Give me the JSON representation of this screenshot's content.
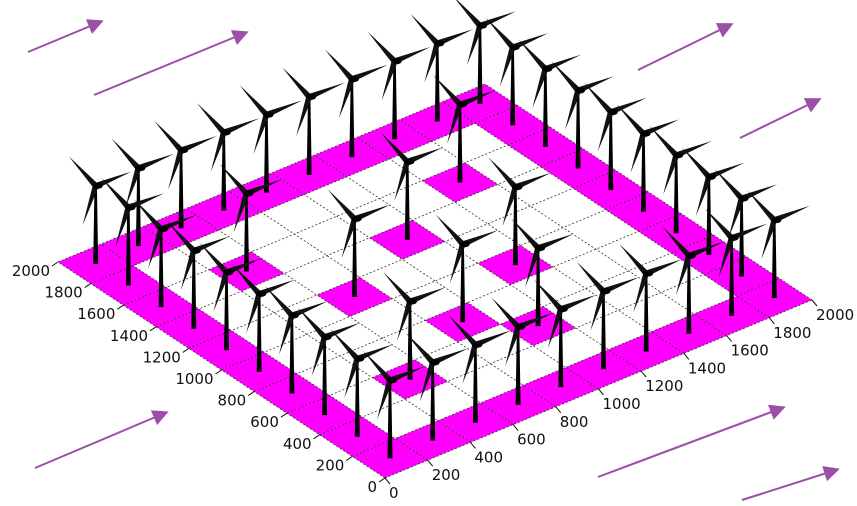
{
  "chart_data": {
    "type": "scatter",
    "x": [
      100,
      300,
      500,
      700,
      900,
      1100,
      1300,
      1500,
      1700,
      1900,
      100,
      300,
      500,
      700,
      900,
      1100,
      1300,
      1500,
      1700,
      1900,
      100,
      100,
      100,
      100,
      100,
      100,
      100,
      100,
      1900,
      1900,
      1900,
      1900,
      1900,
      1900,
      1900,
      1900,
      500,
      900,
      700,
      1100,
      1300,
      500,
      1500,
      1100
    ],
    "y": [
      100,
      100,
      100,
      100,
      100,
      100,
      100,
      100,
      100,
      100,
      1900,
      1900,
      1900,
      1900,
      1900,
      1900,
      1900,
      1900,
      1900,
      1900,
      300,
      500,
      700,
      900,
      1100,
      1300,
      1500,
      1700,
      300,
      500,
      700,
      900,
      1100,
      1300,
      1500,
      1700,
      500,
      700,
      1100,
      1300,
      900,
      1500,
      1500,
      500
    ],
    "color": "#ff00ff",
    "xlim": [
      0,
      2000
    ],
    "ylim": [
      0,
      2000
    ],
    "xticks": [
      0,
      200,
      400,
      600,
      800,
      1000,
      1200,
      1400,
      1600,
      1800,
      2000
    ],
    "yticks": [
      0,
      200,
      400,
      600,
      800,
      1000,
      1200,
      1400,
      1600,
      1800,
      2000
    ],
    "grid": true
  }
}
